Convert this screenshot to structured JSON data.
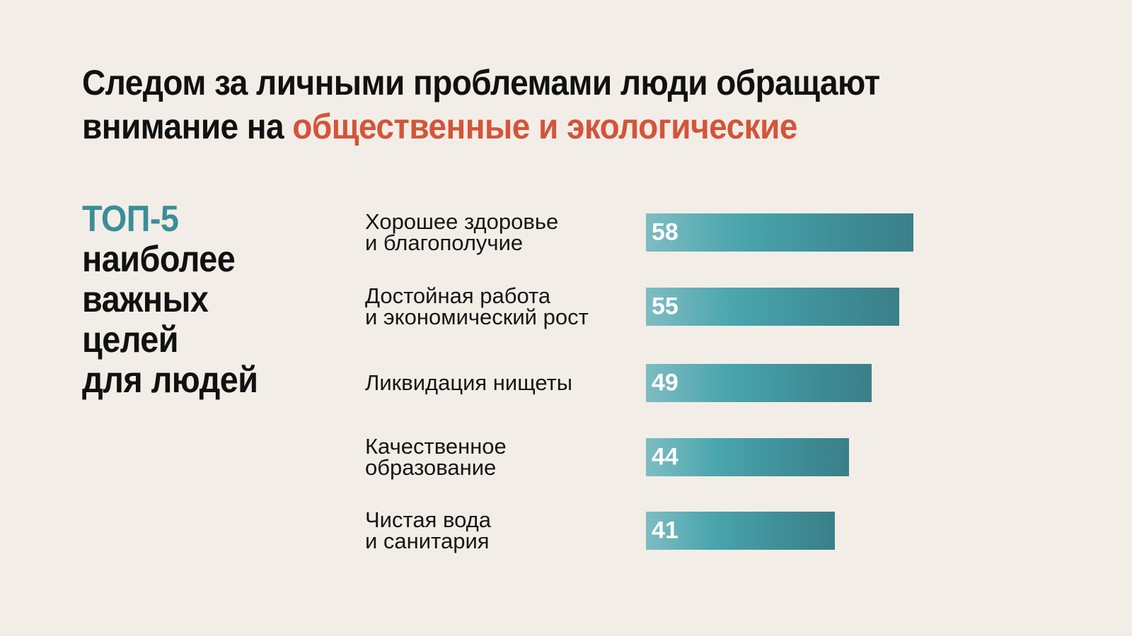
{
  "headline": {
    "line1": "Следом за личными проблемами люди обращают",
    "line2_prefix": "внимание на",
    "line2_accent": "общественные и экологические"
  },
  "side_title": {
    "highlight": "ТОП-5",
    "rest": [
      "наиболее",
      "важных",
      "целей",
      "для людей"
    ]
  },
  "colors": {
    "background": "#f2eee7",
    "accent": "#d4543a",
    "teal": "#3a8e98",
    "bar_light": "#7fbcc3",
    "bar_dark": "#3a7f89"
  },
  "chart_data": {
    "type": "bar",
    "orientation": "horizontal",
    "categories": [
      "Хорошее здоровье\nи благополучие",
      "Достойная работа\nи экономический рост",
      "Ликвидация нищеты",
      "Качественное\nобразование",
      "Чистая вода\nи санитария"
    ],
    "values": [
      58,
      55,
      49,
      44,
      41
    ],
    "data_labels": [
      "58",
      "55",
      "49",
      "44",
      "41"
    ],
    "title": "",
    "xlabel": "",
    "ylabel": "",
    "grid": false,
    "legend": "none"
  }
}
